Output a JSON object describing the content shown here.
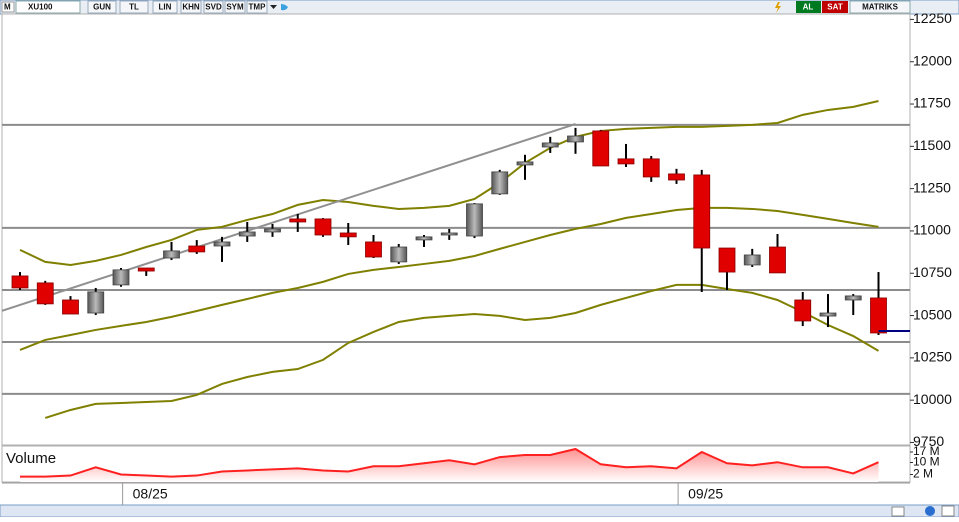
{
  "toolbar": {
    "symbol": "XU100",
    "buttons": [
      "GUN",
      "TL",
      "LIN",
      "KHN",
      "SVD",
      "SYM",
      "TMP"
    ],
    "buy": "AL",
    "sell": "SAT",
    "brand": "MATRIKS"
  },
  "chart_data": {
    "type": "candlestick",
    "categories": [
      null,
      null,
      null,
      null,
      null,
      "08/25",
      null,
      null,
      null,
      null,
      null,
      null,
      null,
      null,
      null,
      null,
      null,
      null,
      null,
      null,
      null,
      null,
      null,
      null,
      null,
      null,
      null,
      "09/25",
      null,
      null,
      null,
      null,
      null,
      null,
      null
    ],
    "open": [
      10734,
      10693,
      10592,
      10515,
      10681,
      10781,
      10840,
      10911,
      10911,
      10970,
      10994,
      11071,
      11071,
      10988,
      10935,
      10817,
      10947,
      10976,
      10970,
      11219,
      11390,
      11496,
      11526,
      11591,
      11426,
      11426,
      11337,
      11331,
      10899,
      10799,
      10905,
      10592,
      10497,
      10592,
      10604
    ],
    "high": [
      10757,
      10705,
      10615,
      10663,
      10781,
      10781,
      10935,
      10946,
      10965,
      11053,
      11041,
      11100,
      11076,
      11047,
      10976,
      10923,
      10976,
      11012,
      11165,
      11361,
      11450,
      11556,
      11609,
      11597,
      11514,
      11443,
      11367,
      11361,
      10899,
      10894,
      10982,
      10639,
      10627,
      10627,
      10757
    ],
    "low": [
      10651,
      10563,
      10509,
      10503,
      10670,
      10734,
      10828,
      10864,
      10817,
      10935,
      10965,
      10994,
      10965,
      10917,
      10840,
      10805,
      10905,
      10947,
      10958,
      11213,
      11302,
      11461,
      11456,
      11384,
      11378,
      11290,
      11278,
      10639,
      10651,
      10787,
      10752,
      10438,
      10432,
      10503,
      10385
    ],
    "close": [
      10663,
      10569,
      10509,
      10640,
      10770,
      10763,
      10882,
      10876,
      10935,
      10994,
      11012,
      11053,
      10976,
      10965,
      10846,
      10905,
      10965,
      10988,
      11160,
      11349,
      11408,
      11520,
      11561,
      11384,
      11396,
      11319,
      11301,
      10899,
      10757,
      10858,
      10752,
      10468,
      10515,
      10616,
      10397
    ],
    "up_color": "#808080",
    "down_color": "#e00000",
    "ylim": [
      9735,
      12282
    ],
    "yticks": [
      12250,
      12000,
      11750,
      11500,
      11250,
      11000,
      10750,
      10500,
      10250,
      10000,
      9750
    ],
    "bollinger": {
      "color": "#808000",
      "upper": [
        10888,
        10817,
        10799,
        10823,
        10858,
        10905,
        10947,
        11006,
        11024,
        11065,
        11100,
        11154,
        11183,
        11171,
        11148,
        11130,
        11136,
        11148,
        11189,
        11284,
        11402,
        11491,
        11556,
        11591,
        11603,
        11609,
        11615,
        11615,
        11621,
        11627,
        11638,
        11686,
        11715,
        11733,
        11768
      ],
      "middle": [
        10297,
        10356,
        10385,
        10415,
        10439,
        10462,
        10492,
        10527,
        10563,
        10598,
        10634,
        10663,
        10699,
        10746,
        10770,
        10787,
        10805,
        10823,
        10852,
        10894,
        10935,
        10976,
        11012,
        11041,
        11077,
        11100,
        11124,
        11136,
        11136,
        11130,
        11118,
        11095,
        11071,
        11047,
        11024
      ],
      "lower": [
        null,
        9895,
        9942,
        9978,
        9983,
        9989,
        9995,
        10031,
        10096,
        10137,
        10167,
        10184,
        10238,
        10338,
        10403,
        10462,
        10486,
        10498,
        10509,
        10498,
        10474,
        10486,
        10515,
        10563,
        10604,
        10645,
        10681,
        10681,
        10657,
        10634,
        10592,
        10521,
        10444,
        10379,
        10291
      ]
    },
    "levels": [
      11627,
      11018,
      10651,
      10344,
      10037
    ],
    "level_color": "#8c8c8c",
    "trendline": {
      "from": [
        0,
        10563
      ],
      "to": [
        22,
        11632
      ],
      "color": "#909090"
    },
    "last_price": 10409,
    "last_price_color": "#000080",
    "volume": {
      "label": "Volume",
      "color": "#ff2020",
      "values": [
        0.6,
        0.6,
        1.3,
        6.8,
        2.0,
        1.3,
        0.6,
        1.3,
        4.0,
        4.7,
        5.4,
        6.1,
        4.7,
        4.0,
        7.5,
        7.5,
        9.5,
        11.5,
        8.8,
        13.6,
        15.0,
        15.0,
        19.0,
        8.8,
        6.8,
        7.5,
        6.1,
        17.0,
        9.5,
        8.1,
        10.2,
        6.8,
        6.8,
        2.7,
        10.2
      ],
      "ylim": [
        -3,
        21
      ],
      "yticks": [
        {
          "value": 17,
          "label": "17 M"
        },
        {
          "value": 10,
          "label": "10 M"
        },
        {
          "value": 2,
          "label": "2 M"
        }
      ]
    }
  }
}
